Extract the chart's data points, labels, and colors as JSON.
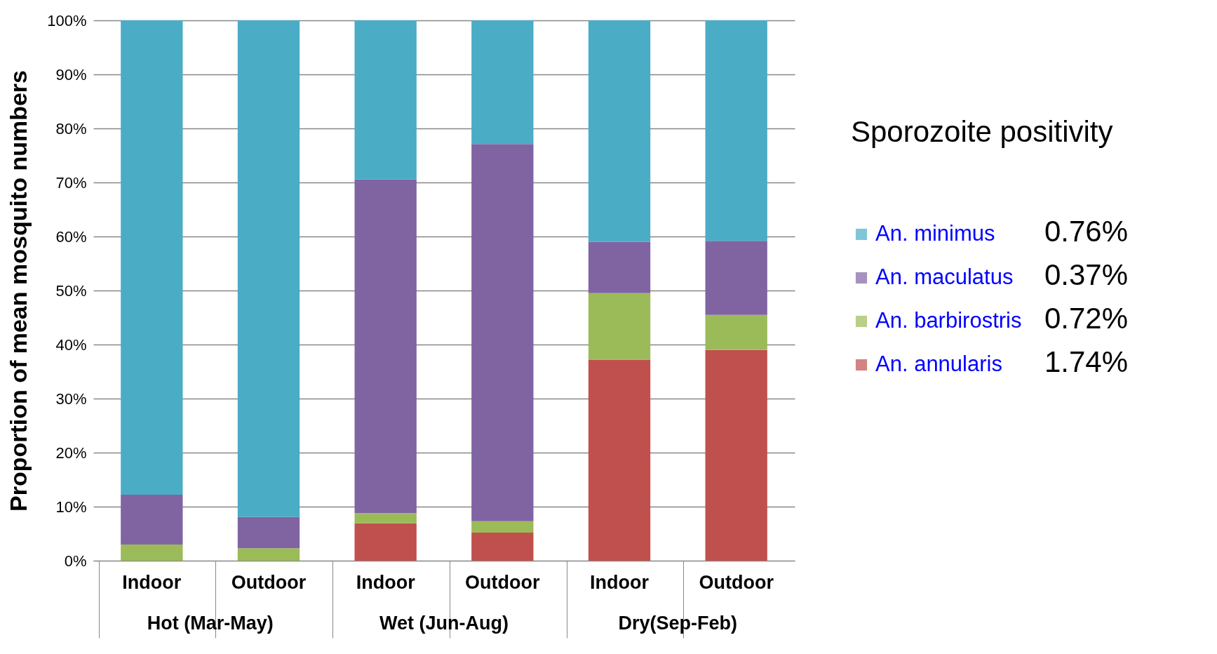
{
  "chart_data": {
    "type": "bar",
    "stacked": true,
    "ylabel": "Proportion  of mean mosquito numbers",
    "legend_title": "Sporozoite positivity",
    "legend": "right",
    "grid": "y",
    "categories": [
      "Indoor",
      "Outdoor",
      "Indoor",
      "Outdoor",
      "Indoor",
      "Outdoor"
    ],
    "series": [
      {
        "name": "An. annularis",
        "color": "#c0504d",
        "values": [
          0,
          0,
          6.9,
          5.2,
          37.2,
          39.0
        ]
      },
      {
        "name": "An. barbirostris",
        "color": "#9bbb59",
        "values": [
          3.0,
          2.3,
          1.9,
          2.1,
          12.3,
          6.5
        ]
      },
      {
        "name": "An. maculatus",
        "color": "#8064a2",
        "values": [
          9.2,
          5.8,
          61.8,
          69.8,
          9.5,
          13.7
        ]
      },
      {
        "name": "An. minimus",
        "color": "#4bacc6",
        "values": [
          87.8,
          91.9,
          29.4,
          22.9,
          41.0,
          40.8
        ]
      }
    ],
    "ylim": [
      0,
      100
    ],
    "yticks": [
      {
        "value": 0,
        "label": "0%"
      },
      {
        "value": 10,
        "label": "10%"
      },
      {
        "value": 20,
        "label": "20%"
      },
      {
        "value": 30,
        "label": "30%"
      },
      {
        "value": 40,
        "label": "40%"
      },
      {
        "value": 50,
        "label": "50%"
      },
      {
        "value": 60,
        "label": "60%"
      },
      {
        "value": 70,
        "label": "70%"
      },
      {
        "value": 80,
        "label": "80%"
      },
      {
        "value": 90,
        "label": "90%"
      },
      {
        "value": 100,
        "label": "100%"
      }
    ],
    "annotations": [
      "Hot (Mar-May)",
      "Wet (Jun-Aug)",
      "Dry(Sep-Feb)",
      "1.74%",
      "0.72%",
      "0.37%",
      "0.76%"
    ]
  }
}
